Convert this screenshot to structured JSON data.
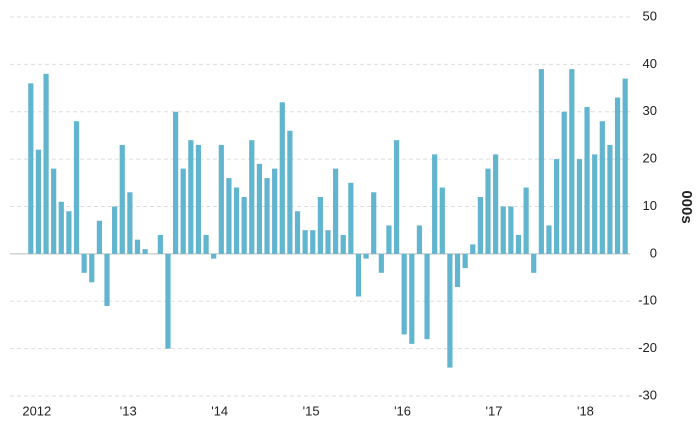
{
  "chart_data": {
    "type": "bar",
    "y_label": "000s",
    "categories": [
      "2012",
      null,
      null,
      null,
      null,
      null,
      null,
      null,
      null,
      null,
      null,
      null,
      "'13",
      null,
      null,
      null,
      null,
      null,
      null,
      null,
      null,
      null,
      null,
      null,
      "'14",
      null,
      null,
      null,
      null,
      null,
      null,
      null,
      null,
      null,
      null,
      null,
      "'15",
      null,
      null,
      null,
      null,
      null,
      null,
      null,
      null,
      null,
      null,
      null,
      "'16",
      null,
      null,
      null,
      null,
      null,
      null,
      null,
      null,
      null,
      null,
      null,
      "'17",
      null,
      null,
      null,
      null,
      null,
      null,
      null,
      null,
      null,
      null,
      null,
      "'18",
      null,
      null,
      null,
      null,
      null,
      null
    ],
    "values": [
      36,
      22,
      38,
      18,
      11,
      9,
      28,
      -4,
      -6,
      7,
      -11,
      10,
      23,
      13,
      3,
      1,
      0,
      4,
      -20,
      30,
      18,
      24,
      23,
      4,
      -1,
      23,
      16,
      14,
      12,
      24,
      19,
      16,
      18,
      32,
      26,
      9,
      5,
      5,
      12,
      5,
      18,
      4,
      15,
      -9,
      -1,
      13,
      -4,
      6,
      24,
      -17,
      -19,
      6,
      -18,
      21,
      14,
      -24,
      -7,
      -3,
      2,
      12,
      18,
      21,
      10,
      10,
      4,
      14,
      -4,
      39,
      6,
      20,
      30,
      39,
      20,
      31,
      21,
      28,
      23,
      33,
      37
    ],
    "color": "#62b5cf",
    "ylim": [
      -30,
      50
    ],
    "yticks": [
      -30,
      -20,
      -10,
      0,
      10,
      20,
      30,
      40,
      50
    ],
    "grid": true
  }
}
